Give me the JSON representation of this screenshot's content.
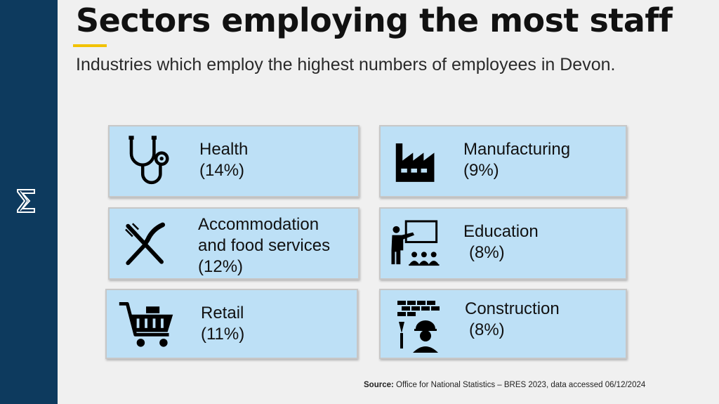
{
  "title": "Sectors employing the most staff",
  "subtitle": "Industries which employ the highest numbers of employees in Devon.",
  "sectors": [
    {
      "name": "Health",
      "share": "(14%)",
      "icon": "stethoscope-icon"
    },
    {
      "name": "Manufacturing",
      "share": "(9%)",
      "icon": "factory-icon"
    },
    {
      "name_line1": "Accommodation",
      "name_line2": "and food services",
      "share": "(12%)",
      "icon": "fork-knife-icon"
    },
    {
      "name": "Education",
      "share": "(8%)",
      "icon": "teacher-board-icon"
    },
    {
      "name": "Retail",
      "share": "(11%)",
      "icon": "shopping-cart-icon"
    },
    {
      "name": "Construction",
      "share": "(8%)",
      "icon": "construction-worker-icon"
    }
  ],
  "source": {
    "label": "Source:",
    "text": "Office for National Statistics – BRES 2023, data accessed 06/12/2024"
  },
  "colors": {
    "sidebar": "#0d3a5e",
    "card": "#bde0f6",
    "accent": "#f2c200"
  }
}
